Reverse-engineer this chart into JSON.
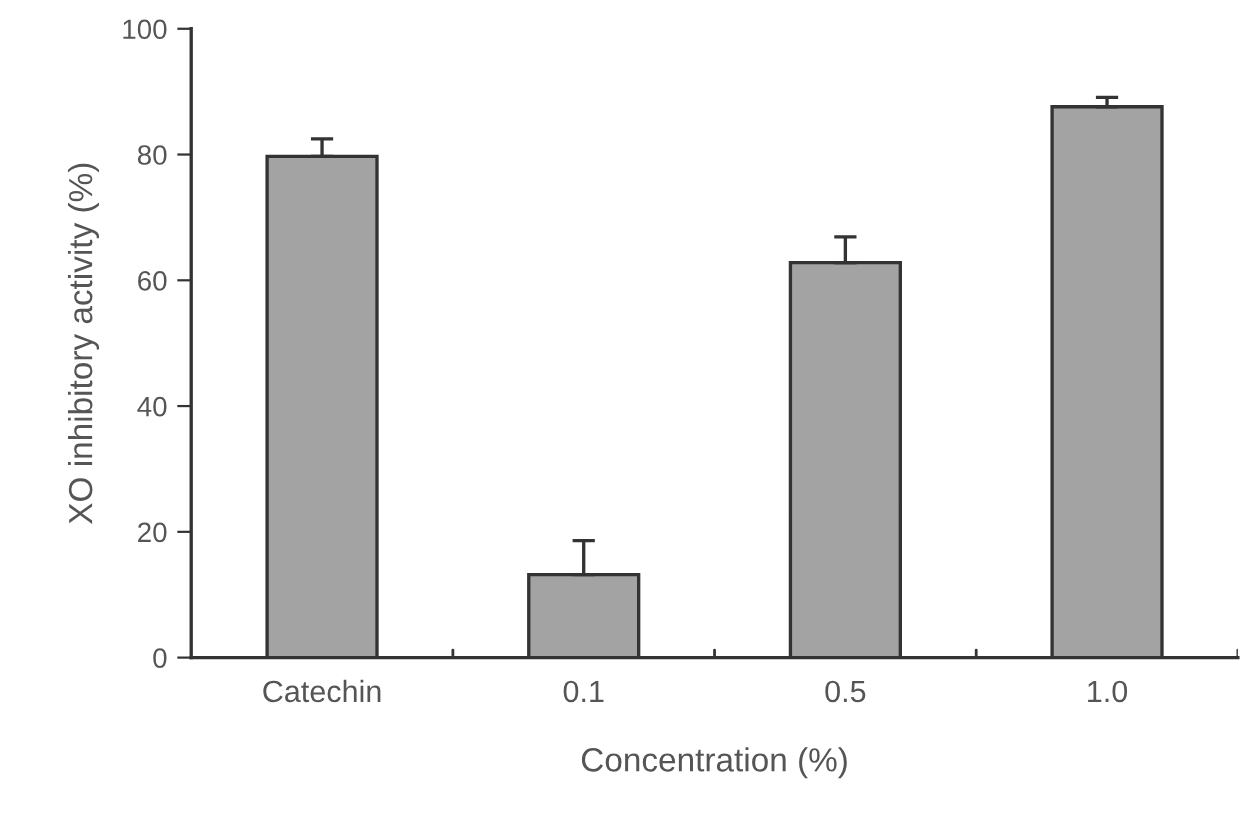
{
  "chart_data": {
    "type": "bar",
    "xlabel": "Concentration (%)",
    "ylabel": "XO inhibitory activity (%)",
    "categories": [
      "Catechin",
      "0.1",
      "0.5",
      "1.0"
    ],
    "values": [
      79.7,
      13.2,
      62.8,
      87.6
    ],
    "errors": [
      [
        79.7,
        82.5
      ],
      [
        13.2,
        18.6
      ],
      [
        62.8,
        66.9
      ],
      [
        87.6,
        89.1
      ]
    ],
    "color": "#a3a3a3",
    "ylim": [
      0,
      100
    ],
    "yticks": [
      0,
      20,
      40,
      60,
      80,
      100
    ],
    "grid": false,
    "legend": false
  }
}
